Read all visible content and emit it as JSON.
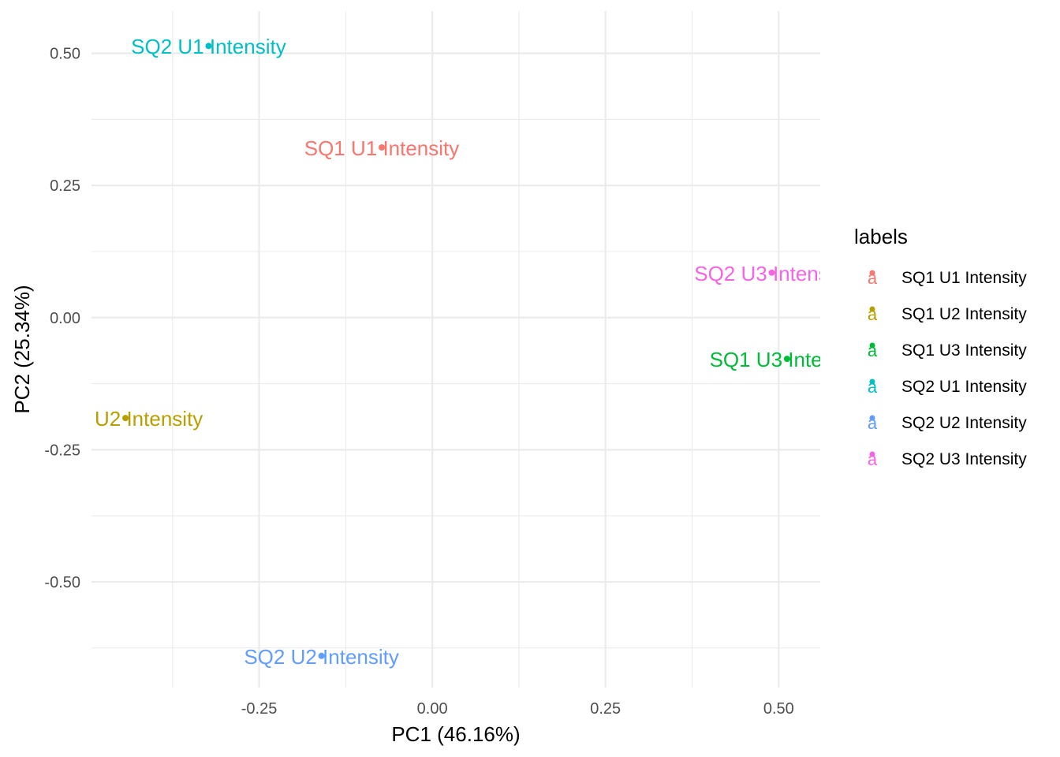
{
  "chart_data": {
    "type": "scatter",
    "xlabel": "PC1 (46.16%)",
    "ylabel": "PC2 (25.34%)",
    "x_ticks": [
      {
        "value": -0.25,
        "label": "-0.25"
      },
      {
        "value": 0.0,
        "label": "0.00"
      },
      {
        "value": 0.25,
        "label": "0.25"
      },
      {
        "value": 0.5,
        "label": "0.50"
      }
    ],
    "y_ticks": [
      {
        "value": 0.5,
        "label": "0.50"
      },
      {
        "value": 0.25,
        "label": "0.25"
      },
      {
        "value": 0.0,
        "label": "0.00"
      },
      {
        "value": -0.25,
        "label": "-0.25"
      },
      {
        "value": -0.5,
        "label": "-0.50"
      }
    ],
    "xlim": [
      -0.492,
      0.56
    ],
    "ylim": [
      -0.7,
      0.58
    ],
    "grid": true,
    "legend": {
      "title": "labels",
      "position": "right",
      "key_glyph": "a"
    },
    "points": [
      {
        "name": "SQ1 U1 Intensity",
        "x": -0.073,
        "y": 0.322,
        "color": "#F8766D"
      },
      {
        "name": "SQ1 U2 Intensity",
        "x": -0.443,
        "y": -0.19,
        "color": "#B79F00"
      },
      {
        "name": "SQ1 U3 Intensity",
        "x": 0.512,
        "y": -0.078,
        "color": "#00BA38"
      },
      {
        "name": "SQ2 U1 Intensity",
        "x": -0.323,
        "y": 0.514,
        "color": "#00BFC4"
      },
      {
        "name": "SQ2 U2 Intensity",
        "x": -0.16,
        "y": -0.64,
        "color": "#619CFF"
      },
      {
        "name": "SQ2 U3 Intensity",
        "x": 0.49,
        "y": 0.085,
        "color": "#F564E3"
      }
    ]
  }
}
